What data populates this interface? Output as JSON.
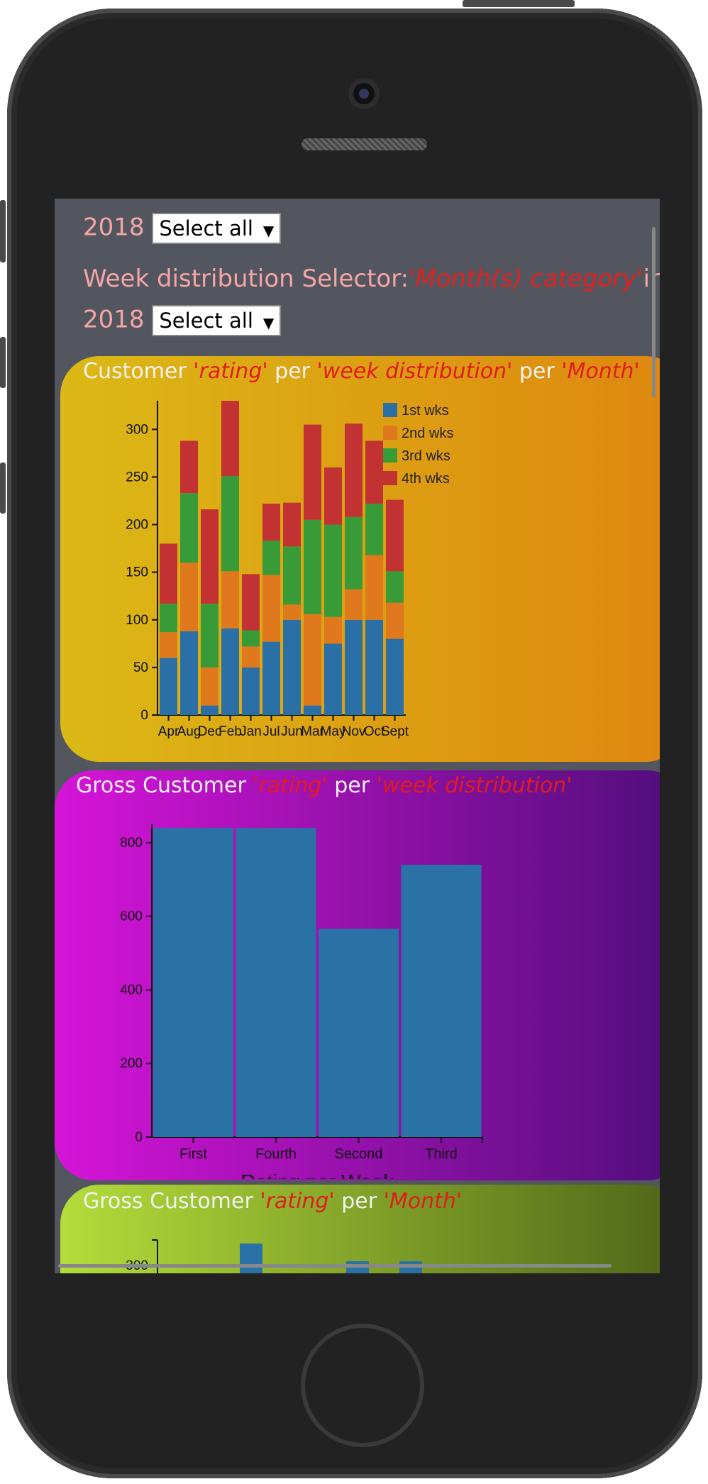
{
  "month_selector": {
    "year": "2018",
    "value": "Select all"
  },
  "week_selector": {
    "label": "Week distribution Selector:",
    "highlight": "'Month(s) category'",
    "in_label": "in",
    "year": "2018",
    "value": "Select all"
  },
  "card1": {
    "title_a": "Customer ",
    "title_b": "'rating'",
    "title_c": " per ",
    "title_d": "'week distribution'",
    "title_e": " per ",
    "title_f": "'Month'"
  },
  "card2": {
    "title_a": "Gross Customer ",
    "title_b": "'rating'",
    "title_c": " per ",
    "title_d": "'week distribution'"
  },
  "card3": {
    "title_a": "Gross Customer ",
    "title_b": "'rating'",
    "title_c": " per ",
    "title_d": "'Month'"
  },
  "chart_data": [
    {
      "type": "bar",
      "stacked": true,
      "categories": [
        "Apr",
        "Aug",
        "Dec",
        "Feb",
        "Jan",
        "Jul",
        "Jun",
        "Mar",
        "May",
        "Nov",
        "Oct",
        "Sept"
      ],
      "series": [
        {
          "name": "1st wks",
          "color": "#2b6fa7",
          "values": [
            60,
            88,
            10,
            91,
            50,
            77,
            100,
            10,
            75,
            100,
            100,
            80
          ]
        },
        {
          "name": "2nd wks",
          "color": "#e0781e",
          "values": [
            27,
            72,
            40,
            60,
            22,
            70,
            16,
            96,
            28,
            32,
            68,
            38
          ]
        },
        {
          "name": "3rd wks",
          "color": "#399a38",
          "values": [
            30,
            73,
            67,
            100,
            17,
            36,
            61,
            99,
            97,
            76,
            54,
            33
          ]
        },
        {
          "name": "4th wks",
          "color": "#c33232",
          "values": [
            63,
            55,
            99,
            79,
            59,
            39,
            46,
            100,
            60,
            98,
            66,
            75
          ]
        }
      ],
      "yticks": [
        0,
        50,
        100,
        150,
        200,
        250,
        300
      ],
      "ylim": [
        0,
        330
      ]
    },
    {
      "type": "bar",
      "categories": [
        "First",
        "Fourth",
        "Second",
        "Third"
      ],
      "values": [
        840,
        840,
        566,
        740
      ],
      "color": "#2a72a6",
      "yticks": [
        0,
        200,
        400,
        600,
        800
      ],
      "ylim": [
        0,
        850
      ],
      "xlabel": "Rating per Week"
    },
    {
      "type": "bar",
      "categories": [],
      "values": [],
      "yticks": [
        300
      ],
      "partial": true
    }
  ]
}
